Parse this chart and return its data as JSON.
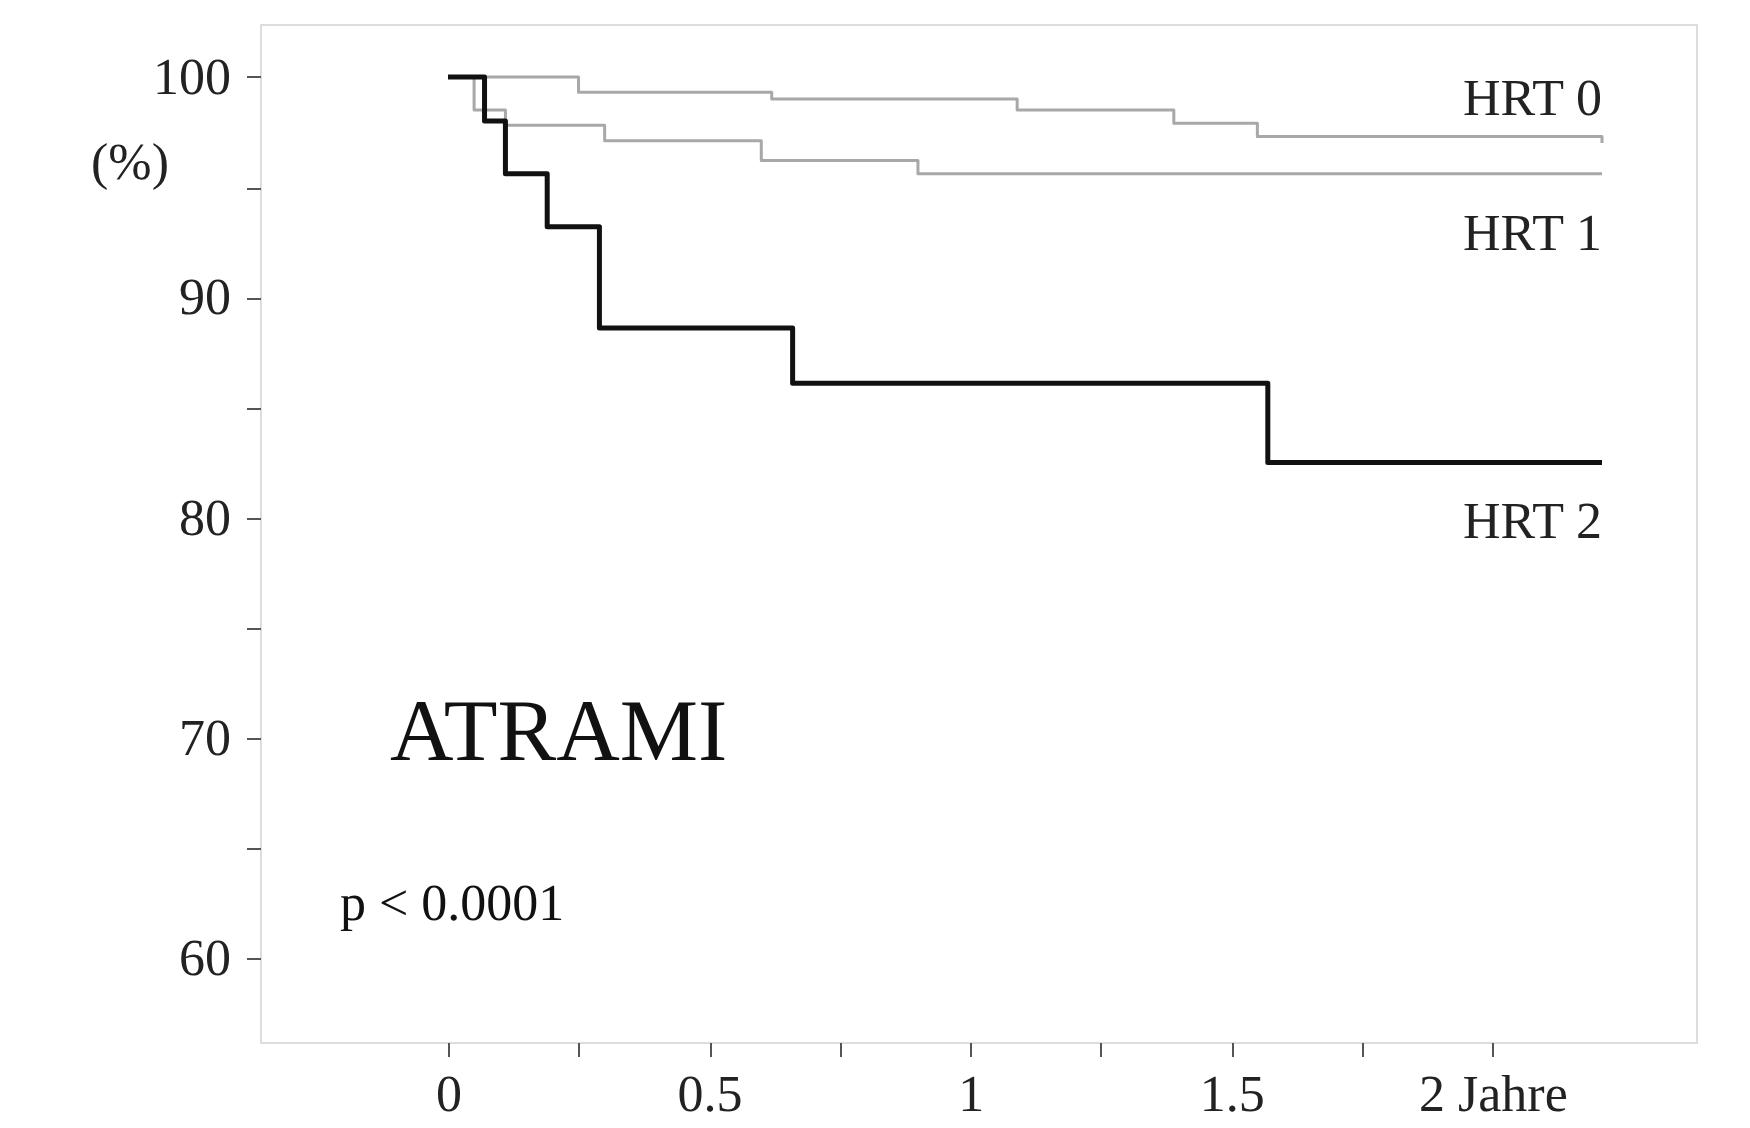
{
  "chart_data": {
    "type": "step",
    "ylabel": "(%)",
    "xlim": [
      -0.36,
      2.39
    ],
    "ylim": [
      56.2,
      102.4
    ],
    "xticks": [
      0,
      {
        "value": 0.25,
        "label": null
      },
      0.5,
      {
        "value": 0.75,
        "label": null
      },
      1,
      {
        "value": 1.25,
        "label": null
      },
      1.5,
      {
        "value": 1.75,
        "label": null
      },
      {
        "value": 2,
        "label": "2 Jahre"
      }
    ],
    "yticks": [
      60,
      {
        "value": 65,
        "label": null
      },
      70,
      {
        "value": 75,
        "label": null
      },
      80,
      {
        "value": 85,
        "label": null
      },
      90,
      {
        "value": 95,
        "label": null
      },
      100
    ],
    "series": [
      {
        "name": "HRT 0",
        "color": "#a8a8a8",
        "x": [
          0,
          0.25,
          0.62,
          1.09,
          1.39,
          1.55,
          2.21
        ],
        "values": [
          100,
          99.3,
          99.0,
          98.5,
          97.9,
          97.3,
          97.0
        ]
      },
      {
        "name": "HRT 1",
        "color": "#a8a8a8",
        "x": [
          0,
          0.05,
          0.11,
          0.3,
          0.6,
          0.9,
          2.21
        ],
        "values": [
          100,
          98.5,
          97.8,
          97.1,
          96.2,
          95.6,
          95.6
        ]
      },
      {
        "name": "HRT 2",
        "color": "#111111",
        "x": [
          0,
          0.07,
          0.11,
          0.19,
          0.29,
          0.66,
          1.57,
          2.21
        ],
        "values": [
          100,
          98.0,
          95.6,
          93.2,
          88.6,
          86.1,
          82.5,
          82.5
        ]
      }
    ],
    "annotations": [
      "ATRAMI",
      "p < 0.0001"
    ],
    "grid": false,
    "line_style": "solid",
    "marker": "none"
  }
}
